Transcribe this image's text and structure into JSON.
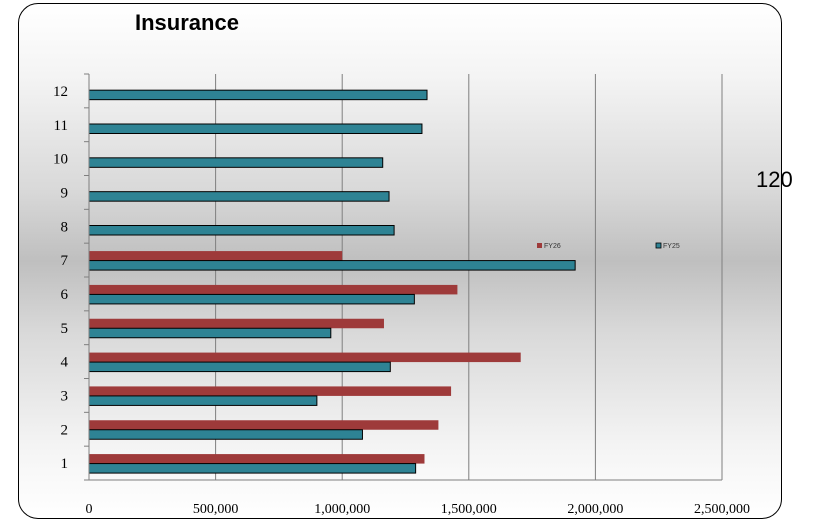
{
  "chart_data": {
    "type": "bar",
    "orientation": "horizontal",
    "title": "Insurance",
    "side_label": "120",
    "categories": [
      "1",
      "2",
      "3",
      "4",
      "5",
      "6",
      "7",
      "8",
      "9",
      "10",
      "11",
      "12"
    ],
    "series": [
      {
        "name": "FY25",
        "color": "#2e8394",
        "values": [
          1290000,
          1080000,
          900000,
          1190000,
          955000,
          1285000,
          1920000,
          1205000,
          1185000,
          1160000,
          1315000,
          1335000
        ]
      },
      {
        "name": "FY26",
        "color": "#9e3a3a",
        "values": [
          1325000,
          1380000,
          1430000,
          1705000,
          1165000,
          1455000,
          1000000,
          null,
          null,
          null,
          null,
          null
        ]
      }
    ],
    "xlim": [
      0,
      2500000
    ],
    "x_ticks": [
      0,
      500000,
      1000000,
      1500000,
      2000000,
      2500000
    ],
    "x_tick_labels": [
      "0",
      "500,000",
      "1,000,000",
      "1,500,000",
      "2,000,000",
      "2,500,000"
    ],
    "grid": "vertical",
    "legend_position": "middle-right"
  }
}
